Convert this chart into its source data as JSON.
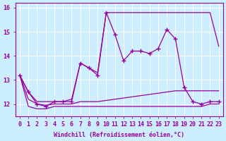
{
  "xlabel": "Windchill (Refroidissement éolien,°C)",
  "background_color": "#cceeff",
  "grid_color": "#ffffff",
  "line_color": "#990099",
  "x_hours": [
    0,
    1,
    2,
    3,
    4,
    5,
    6,
    7,
    8,
    9,
    10,
    11,
    12,
    13,
    14,
    15,
    16,
    17,
    18,
    19,
    20,
    21,
    22,
    23
  ],
  "series_main": [
    13.2,
    12.5,
    12.0,
    11.9,
    12.1,
    12.1,
    12.1,
    13.7,
    13.5,
    13.2,
    15.8,
    14.9,
    13.8,
    14.2,
    14.2,
    14.1,
    14.3,
    15.1,
    14.7,
    12.7,
    12.1,
    12.0,
    12.1,
    12.1
  ],
  "series_max": [
    13.2,
    12.5,
    12.1,
    12.1,
    12.1,
    12.1,
    12.2,
    13.7,
    13.5,
    13.3,
    15.8,
    15.8,
    15.8,
    15.8,
    15.8,
    15.8,
    15.8,
    15.8,
    15.8,
    15.8,
    15.8,
    15.8,
    15.8,
    14.4
  ],
  "series_min": [
    13.2,
    11.9,
    11.8,
    11.8,
    11.9,
    11.9,
    11.9,
    11.9,
    11.9,
    11.9,
    11.9,
    11.9,
    11.9,
    11.9,
    11.9,
    11.9,
    11.9,
    11.9,
    11.9,
    11.9,
    11.9,
    11.9,
    12.0,
    12.0
  ],
  "series_avg": [
    13.2,
    12.2,
    12.0,
    11.95,
    12.0,
    12.0,
    12.0,
    12.1,
    12.1,
    12.1,
    12.15,
    12.2,
    12.25,
    12.3,
    12.35,
    12.4,
    12.45,
    12.5,
    12.55,
    12.55,
    12.55,
    12.55,
    12.55,
    12.55
  ],
  "ylim": [
    11.5,
    16.2
  ],
  "yticks": [
    12,
    13,
    14,
    15,
    16
  ],
  "xticks": [
    0,
    1,
    2,
    3,
    4,
    5,
    6,
    7,
    8,
    9,
    10,
    11,
    12,
    13,
    14,
    15,
    16,
    17,
    18,
    19,
    20,
    21,
    22,
    23
  ],
  "xlim": [
    -0.5,
    23.5
  ]
}
